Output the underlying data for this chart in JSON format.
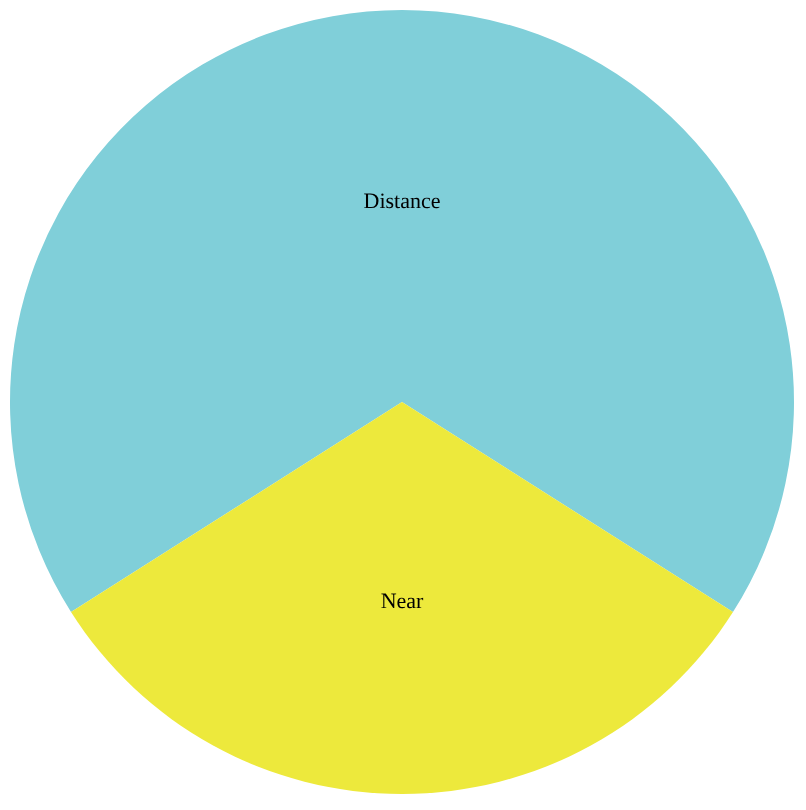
{
  "chart_data": {
    "type": "pie",
    "categories": [
      "Distance",
      "Near"
    ],
    "values": [
      68,
      32
    ],
    "colors": [
      "#80cfd9",
      "#ede93c"
    ]
  }
}
